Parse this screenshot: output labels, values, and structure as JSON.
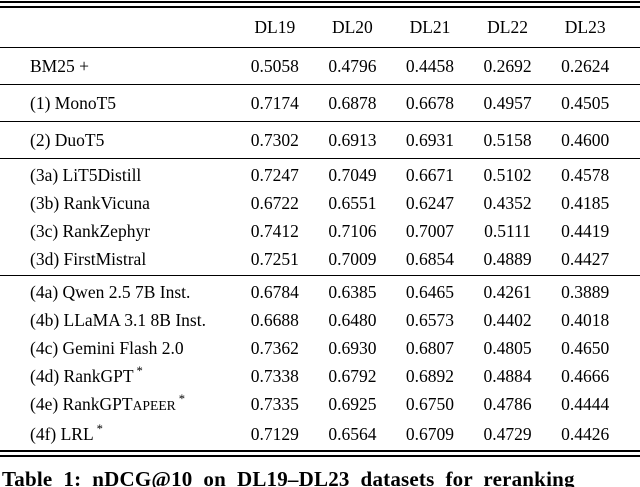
{
  "table": {
    "columns": [
      "DL19",
      "DL20",
      "DL21",
      "DL22",
      "DL23"
    ],
    "groups": [
      {
        "rows": [
          {
            "name": "BM25 +",
            "values": [
              "0.5058",
              "0.4796",
              "0.4458",
              "0.2692",
              "0.2624"
            ]
          }
        ]
      },
      {
        "rows": [
          {
            "name": "(1) MonoT5",
            "values": [
              "0.7174",
              "0.6878",
              "0.6678",
              "0.4957",
              "0.4505"
            ]
          }
        ]
      },
      {
        "rows": [
          {
            "name": "(2) DuoT5",
            "values": [
              "0.7302",
              "0.6913",
              "0.6931",
              "0.5158",
              "0.4600"
            ]
          }
        ]
      },
      {
        "rows": [
          {
            "name": "(3a) LiT5Distill",
            "values": [
              "0.7247",
              "0.7049",
              "0.6671",
              "0.5102",
              "0.4578"
            ]
          },
          {
            "name": "(3b) RankVicuna",
            "values": [
              "0.6722",
              "0.6551",
              "0.6247",
              "0.4352",
              "0.4185"
            ]
          },
          {
            "name": "(3c) RankZephyr",
            "values": [
              "0.7412",
              "0.7106",
              "0.7007",
              "0.5111",
              "0.4419"
            ]
          },
          {
            "name": "(3d) FirstMistral",
            "values": [
              "0.7251",
              "0.7009",
              "0.6854",
              "0.4889",
              "0.4427"
            ]
          }
        ]
      },
      {
        "rows": [
          {
            "name": "(4a) Qwen 2.5 7B Inst.",
            "values": [
              "0.6784",
              "0.6385",
              "0.6465",
              "0.4261",
              "0.3889"
            ]
          },
          {
            "name": "(4b) LLaMA 3.1 8B Inst.",
            "values": [
              "0.6688",
              "0.6480",
              "0.6573",
              "0.4402",
              "0.4018"
            ]
          },
          {
            "name": "(4c) Gemini Flash 2.0",
            "values": [
              "0.7362",
              "0.6930",
              "0.6807",
              "0.4805",
              "0.4650"
            ]
          },
          {
            "name": "(4d) RankGPT",
            "star": "*",
            "values": [
              "0.7338",
              "0.6792",
              "0.6892",
              "0.4884",
              "0.4666"
            ]
          },
          {
            "name": "(4e) RankGPT",
            "sub": "APEER",
            "star": "*",
            "values": [
              "0.7335",
              "0.6925",
              "0.6750",
              "0.4786",
              "0.4444"
            ]
          },
          {
            "name": "(4f) LRL",
            "star": "*",
            "values": [
              "0.7129",
              "0.6564",
              "0.6709",
              "0.4729",
              "0.4426"
            ]
          }
        ]
      }
    ],
    "caption": "Table 1: nDCG@10 on DL19–DL23 datasets for reranking"
  }
}
